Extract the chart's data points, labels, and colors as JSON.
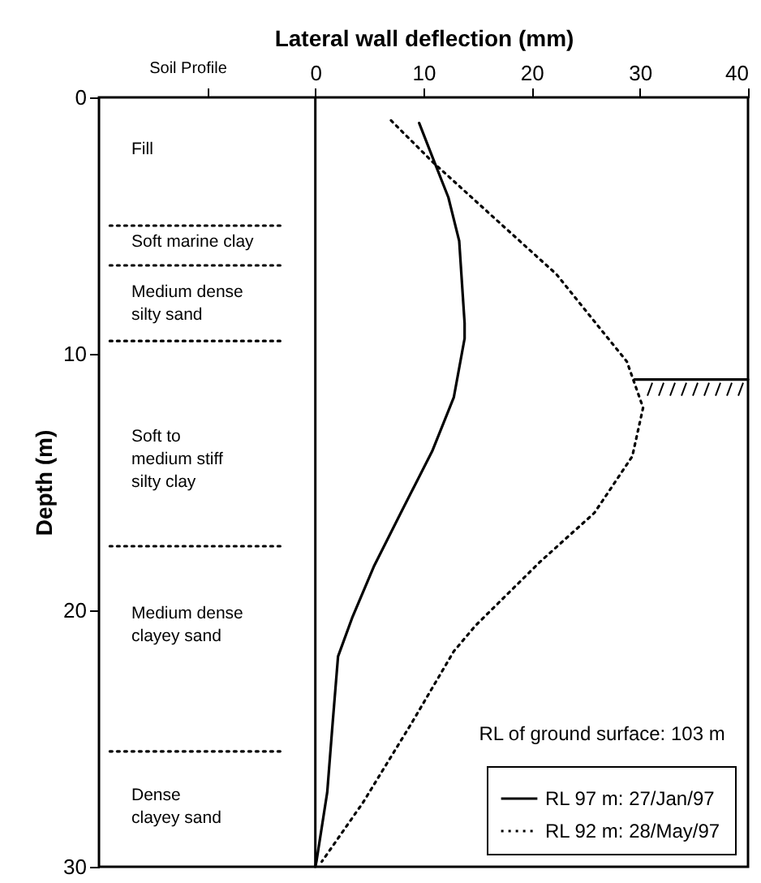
{
  "chart_data": {
    "type": "line",
    "xlabel": "Lateral wall deflection (mm)",
    "ylabel": "Depth (m)",
    "xlim": [
      -20,
      40
    ],
    "xticks": [
      {
        "value": -10,
        "label": null
      },
      0,
      10,
      20,
      30,
      40
    ],
    "ylim": [
      30,
      0
    ],
    "yticks": [
      0,
      10,
      20,
      30
    ],
    "grid": false,
    "legend": "bottom right",
    "marker": "none",
    "ref_lines": [
      {
        "axis": "x",
        "value": 0,
        "color": "#000000",
        "line_style": "solid"
      }
    ],
    "series": [
      {
        "name": "RL 97 m: 27/Jan/97",
        "color": "#000000",
        "line_style": "solid",
        "x": [
          9.6,
          10.8,
          12.3,
          13.3,
          13.8,
          13.8,
          12.8,
          10.8,
          7.9,
          5.4,
          3.4,
          2.1,
          1.6,
          1.1,
          0.1,
          0
        ],
        "values": [
          1.0,
          2.3,
          3.9,
          5.6,
          8.8,
          9.4,
          11.7,
          13.8,
          16.2,
          18.3,
          20.3,
          21.8,
          24.4,
          27.1,
          29.8,
          30
        ]
      },
      {
        "name": "RL 92 m: 28/May/97",
        "color": "#000000",
        "line_style": "dotted",
        "x": [
          7.0,
          10.8,
          16.8,
          22.3,
          26.3,
          28.8,
          30.3,
          29.3,
          25.8,
          20.8,
          14.8,
          12.8,
          8.9,
          4.4,
          0.6
        ],
        "values": [
          0.9,
          2.5,
          4.8,
          6.9,
          9.0,
          10.3,
          12.1,
          14.0,
          16.2,
          18.1,
          20.6,
          21.6,
          24.4,
          27.5,
          29.8
        ]
      },
      {
        "color": "#000000",
        "line_style": "dotted",
        "x": [
          -19,
          -3
        ],
        "values": [
          5.0,
          5.0
        ]
      },
      {
        "color": "#000000",
        "line_style": "dotted",
        "x": [
          -19,
          -3
        ],
        "values": [
          6.55,
          6.55
        ]
      },
      {
        "color": "#000000",
        "line_style": "dotted",
        "x": [
          -19,
          -3
        ],
        "values": [
          9.5,
          9.5
        ]
      },
      {
        "color": "#000000",
        "line_style": "dotted",
        "x": [
          -19,
          -3
        ],
        "values": [
          17.5,
          17.5
        ]
      },
      {
        "color": "#000000",
        "line_style": "dotted",
        "x": [
          -19,
          -3
        ],
        "values": [
          25.5,
          25.5
        ]
      },
      {
        "color": "#000000",
        "line_style": "solid",
        "x": [
          29.5,
          40
        ],
        "values": [
          11.0,
          11.0
        ]
      }
    ],
    "annotations": [
      "Soil Profile",
      "RL of ground surface: 103 m",
      "Fill",
      "Soft marine clay",
      "Medium dense\nsilty sand",
      "Soft to\nmedium stiff\nsilty clay",
      "Medium dense\nclayey sand",
      "Dense\nclayey sand"
    ]
  }
}
